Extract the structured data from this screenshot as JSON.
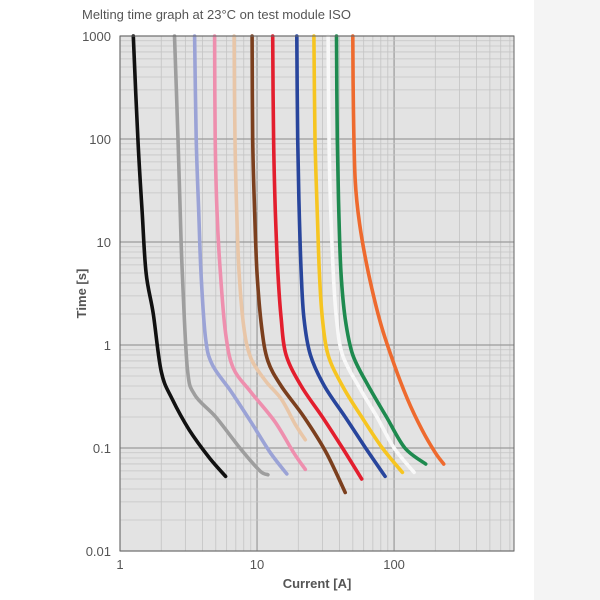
{
  "chart_data": {
    "type": "line",
    "title": "Melting time graph at 23°C on test module ISO",
    "xlabel": "Current [A]",
    "ylabel": "Time [s]",
    "xscale": "log",
    "yscale": "log",
    "xlim": [
      1,
      750
    ],
    "ylim": [
      0.01,
      1000
    ],
    "grid": true,
    "legend": "none",
    "x_ticks": [
      {
        "value": 1,
        "label": "1"
      },
      {
        "value": 10,
        "label": "10"
      },
      {
        "value": 100,
        "label": "100"
      }
    ],
    "y_ticks": [
      {
        "value": 0.01,
        "label": "0.01"
      },
      {
        "value": 0.1,
        "label": "0.1"
      },
      {
        "value": 1,
        "label": "1"
      },
      {
        "value": 10,
        "label": "10"
      },
      {
        "value": 100,
        "label": "100"
      },
      {
        "value": 1000,
        "label": "1000"
      }
    ],
    "colors": {
      "plot_background": "#e3e3e3",
      "grid_minor": "#c4c4c4",
      "grid_major": "#9a9a9a",
      "axis": "#666666"
    },
    "series": [
      {
        "color": "#111111",
        "points": [
          [
            1.25,
            1000
          ],
          [
            1.35,
            100
          ],
          [
            1.45,
            20
          ],
          [
            1.55,
            5
          ],
          [
            1.75,
            2
          ],
          [
            2.0,
            0.55
          ],
          [
            2.4,
            0.3
          ],
          [
            3.2,
            0.15
          ],
          [
            4.5,
            0.08
          ],
          [
            5.9,
            0.053
          ]
        ]
      },
      {
        "color": "#9e9e9e",
        "points": [
          [
            2.5,
            1000
          ],
          [
            2.65,
            100
          ],
          [
            2.75,
            20
          ],
          [
            2.85,
            5
          ],
          [
            3.1,
            0.6
          ],
          [
            3.5,
            0.33
          ],
          [
            5.0,
            0.2
          ],
          [
            7.5,
            0.1
          ],
          [
            10.5,
            0.06
          ],
          [
            12.0,
            0.055
          ]
        ]
      },
      {
        "color": "#9ba3d6",
        "points": [
          [
            3.5,
            1000
          ],
          [
            3.6,
            100
          ],
          [
            3.75,
            20
          ],
          [
            3.9,
            5
          ],
          [
            4.2,
            1.2
          ],
          [
            4.7,
            0.65
          ],
          [
            6.5,
            0.35
          ],
          [
            9.0,
            0.18
          ],
          [
            12.5,
            0.09
          ],
          [
            16.5,
            0.056
          ]
        ]
      },
      {
        "color": "#ee8fae",
        "points": [
          [
            4.9,
            1000
          ],
          [
            4.95,
            100
          ],
          [
            5.1,
            20
          ],
          [
            5.4,
            5
          ],
          [
            5.9,
            1.3
          ],
          [
            6.7,
            0.6
          ],
          [
            9.0,
            0.35
          ],
          [
            13.5,
            0.18
          ],
          [
            18.5,
            0.09
          ],
          [
            22.5,
            0.062
          ]
        ]
      },
      {
        "color": "#e8c6a8",
        "points": [
          [
            6.8,
            1000
          ],
          [
            6.9,
            100
          ],
          [
            7.1,
            20
          ],
          [
            7.4,
            5
          ],
          [
            8.0,
            1.5
          ],
          [
            9.0,
            0.75
          ],
          [
            11.5,
            0.45
          ],
          [
            15.0,
            0.3
          ],
          [
            19.0,
            0.17
          ],
          [
            22.5,
            0.12
          ]
        ]
      },
      {
        "color": "#7b3f1e",
        "points": [
          [
            9.2,
            1000
          ],
          [
            9.3,
            100
          ],
          [
            9.6,
            20
          ],
          [
            10.0,
            5
          ],
          [
            10.8,
            1.5
          ],
          [
            12.0,
            0.7
          ],
          [
            15.0,
            0.4
          ],
          [
            22.0,
            0.2
          ],
          [
            32.0,
            0.09
          ],
          [
            44.0,
            0.037
          ]
        ]
      },
      {
        "color": "#e31e2e",
        "points": [
          [
            13.0,
            1000
          ],
          [
            13.2,
            100
          ],
          [
            13.6,
            20
          ],
          [
            14.2,
            5
          ],
          [
            15.0,
            1.8
          ],
          [
            16.3,
            0.8
          ],
          [
            21.0,
            0.4
          ],
          [
            30.0,
            0.2
          ],
          [
            42.0,
            0.1
          ],
          [
            58.0,
            0.05
          ]
        ]
      },
      {
        "color": "#28459c",
        "points": [
          [
            19.5,
            1000
          ],
          [
            19.8,
            100
          ],
          [
            20.3,
            20
          ],
          [
            21.0,
            5
          ],
          [
            22.0,
            1.8
          ],
          [
            24.5,
            0.8
          ],
          [
            31.0,
            0.4
          ],
          [
            44.0,
            0.2
          ],
          [
            62.0,
            0.1
          ],
          [
            86.0,
            0.053
          ]
        ]
      },
      {
        "color": "#f6c521",
        "points": [
          [
            26.0,
            1000
          ],
          [
            26.5,
            100
          ],
          [
            27.5,
            20
          ],
          [
            28.5,
            5
          ],
          [
            30.0,
            1.8
          ],
          [
            33.0,
            0.8
          ],
          [
            42.0,
            0.4
          ],
          [
            58.0,
            0.2
          ],
          [
            82.0,
            0.1
          ],
          [
            115.0,
            0.058
          ]
        ]
      },
      {
        "color": "#f8f8f8",
        "points": [
          [
            33.0,
            1000
          ],
          [
            33.5,
            100
          ],
          [
            34.5,
            20
          ],
          [
            36.0,
            5
          ],
          [
            38.0,
            1.8
          ],
          [
            42.0,
            0.8
          ],
          [
            55.0,
            0.4
          ],
          [
            75.0,
            0.2
          ],
          [
            100.0,
            0.1
          ],
          [
            140.0,
            0.058
          ]
        ]
      },
      {
        "color": "#1e8a4f",
        "points": [
          [
            38.0,
            1000
          ],
          [
            38.5,
            100
          ],
          [
            39.5,
            20
          ],
          [
            41.0,
            5
          ],
          [
            44.0,
            1.8
          ],
          [
            50.0,
            0.8
          ],
          [
            65.0,
            0.4
          ],
          [
            88.0,
            0.2
          ],
          [
            120.0,
            0.1
          ],
          [
            170.0,
            0.07
          ]
        ]
      },
      {
        "color": "#ee6a2e",
        "points": [
          [
            50.0,
            1000
          ],
          [
            50.5,
            200
          ],
          [
            52.0,
            40
          ],
          [
            56.0,
            15
          ],
          [
            65.0,
            5
          ],
          [
            80.0,
            1.6
          ],
          [
            100.0,
            0.65
          ],
          [
            125.0,
            0.3
          ],
          [
            160.0,
            0.15
          ],
          [
            200.0,
            0.09
          ],
          [
            230.0,
            0.07
          ]
        ]
      }
    ]
  }
}
